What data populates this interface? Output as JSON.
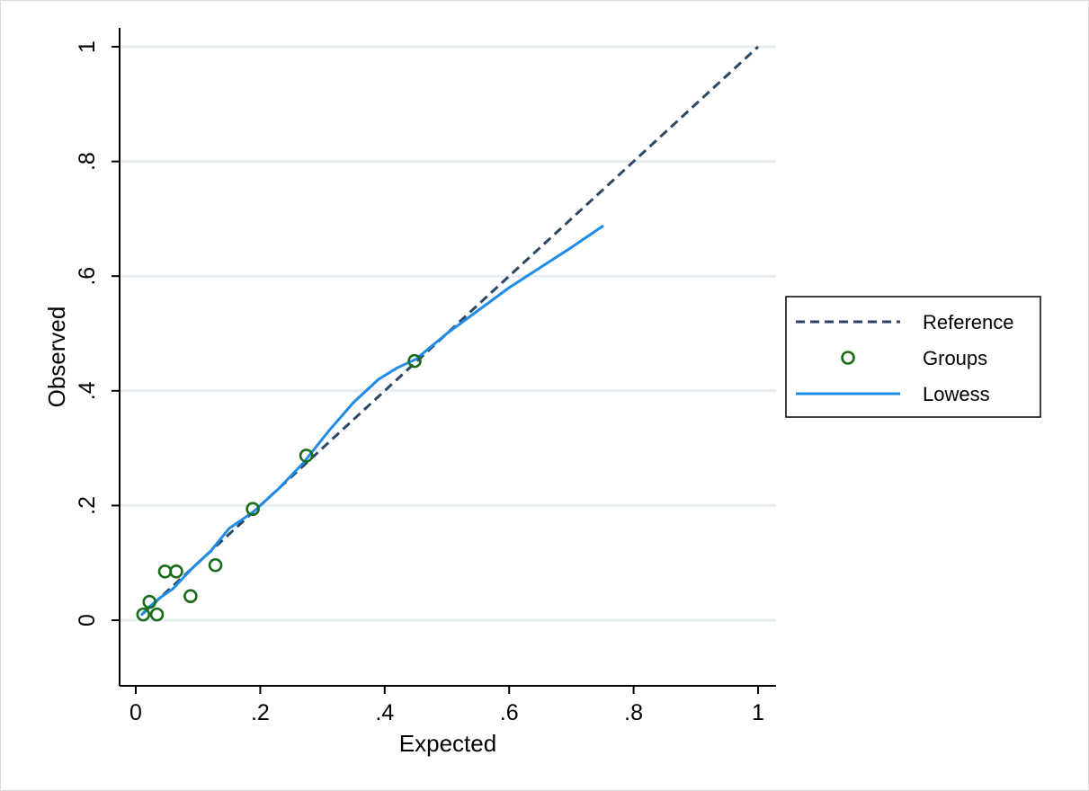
{
  "chart_data": {
    "type": "scatter",
    "xlabel": "Expected",
    "ylabel": "Observed",
    "xlim": [
      0,
      1
    ],
    "ylim": [
      -0.115,
      1
    ],
    "xticks": [
      0,
      0.2,
      0.4,
      0.6,
      0.8,
      1
    ],
    "xtick_labels": [
      "0",
      ".2",
      ".4",
      ".6",
      ".8",
      "1"
    ],
    "yticks": [
      0,
      0.2,
      0.4,
      0.6,
      0.8,
      1
    ],
    "ytick_labels": [
      "0",
      ".2",
      ".4",
      ".6",
      ".8",
      "1"
    ],
    "grid": "horizontal",
    "legend_position": "right",
    "series": [
      {
        "name": "Reference",
        "kind": "line",
        "style": "dashed",
        "color": "#2b4763",
        "x": [
          0.01,
          1.0
        ],
        "y": [
          0.01,
          1.0
        ]
      },
      {
        "name": "Groups",
        "kind": "scatter",
        "marker": "hollow-circle",
        "color": "#1a6b1a",
        "x": [
          0.012,
          0.022,
          0.034,
          0.047,
          0.065,
          0.088,
          0.128,
          0.188,
          0.274,
          0.448
        ],
        "y": [
          0.01,
          0.032,
          0.01,
          0.085,
          0.085,
          0.042,
          0.096,
          0.194,
          0.287,
          0.452
        ]
      },
      {
        "name": "Lowess",
        "kind": "line",
        "style": "solid",
        "color": "#1f8be6",
        "x": [
          0.01,
          0.02,
          0.04,
          0.06,
          0.09,
          0.12,
          0.15,
          0.19,
          0.23,
          0.27,
          0.31,
          0.35,
          0.39,
          0.42,
          0.45,
          0.5,
          0.55,
          0.6,
          0.65,
          0.7,
          0.75
        ],
        "y": [
          0.01,
          0.022,
          0.04,
          0.055,
          0.09,
          0.12,
          0.16,
          0.19,
          0.23,
          0.275,
          0.33,
          0.38,
          0.42,
          0.44,
          0.455,
          0.5,
          0.54,
          0.58,
          0.615,
          0.65,
          0.687
        ]
      }
    ]
  }
}
